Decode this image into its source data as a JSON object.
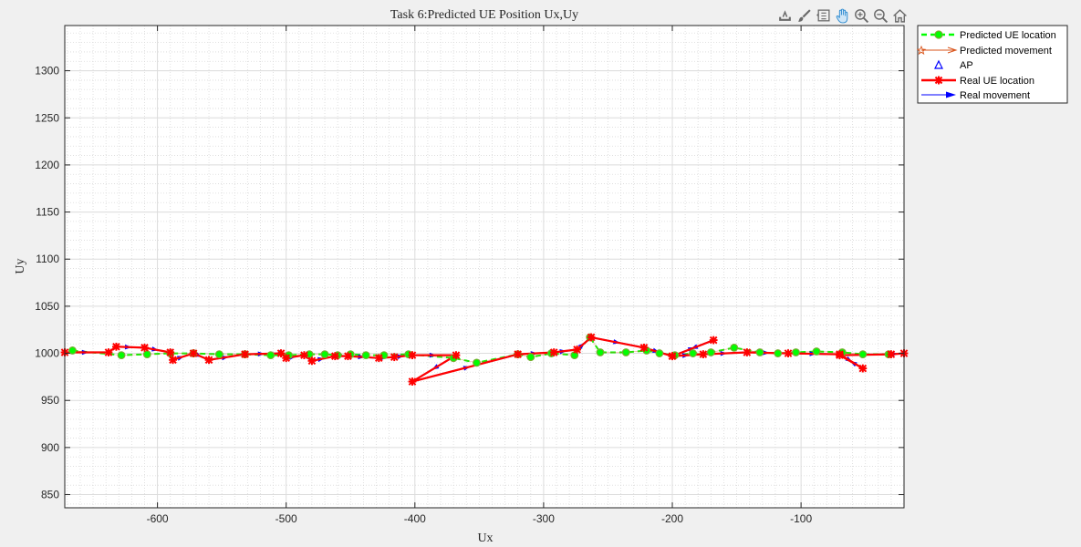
{
  "toolbar": {
    "icons": [
      "export-icon",
      "brush-icon",
      "datatip-icon",
      "pan-icon",
      "zoom-in-icon",
      "zoom-out-icon",
      "home-icon"
    ]
  },
  "chart_data": {
    "type": "line",
    "title": "Task 6:Predicted UE Position Ux,Uy",
    "xlabel": "Ux",
    "ylabel": "Uy",
    "xlim": [
      -672,
      -20
    ],
    "ylim": [
      836,
      1348
    ],
    "xticks": [
      -600,
      -500,
      -400,
      -300,
      -200,
      -100
    ],
    "yticks": [
      850,
      900,
      950,
      1000,
      1050,
      1100,
      1150,
      1200,
      1250,
      1300
    ],
    "grid": true,
    "minor_grid": true,
    "legend_position": "outside-top-right",
    "legend": [
      "Predicted UE location",
      "Predicted movement",
      "AP",
      "Real UE location",
      "Real movement"
    ],
    "colors": {
      "predicted_location": "#00ff00",
      "predicted_marker_edge": "#77ac30",
      "predicted_movement": "#d95319",
      "ap": "#0000ff",
      "real_location": "#ff0000",
      "real_movement": "#0000ff"
    },
    "series": [
      {
        "name": "Predicted UE location",
        "x": [
          -666,
          -628,
          -608,
          -590,
          -572,
          -552,
          -532,
          -512,
          -498,
          -482,
          -470,
          -460,
          -450,
          -438,
          -424,
          -405,
          -370,
          -352,
          -320,
          -310,
          -294,
          -276,
          -264,
          -256,
          -236,
          -220,
          -210,
          -198,
          -184,
          -170,
          -152,
          -132,
          -118,
          -104,
          -88,
          -68,
          -52,
          -32
        ],
        "y": [
          1003,
          998,
          999,
          1000,
          1000,
          999,
          999,
          998,
          998,
          999,
          999,
          998,
          999,
          998,
          998,
          999,
          995,
          990,
          999,
          996,
          1000,
          998,
          1017,
          1001,
          1001,
          1003,
          1000,
          998,
          1000,
          1001,
          1006,
          1001,
          1000,
          1001,
          1002,
          1001,
          999,
          999
        ]
      },
      {
        "name": "Real UE location",
        "x": [
          -672,
          -638,
          -632,
          -610,
          -590,
          -588,
          -572,
          -560,
          -532,
          -504,
          -500,
          -486,
          -480,
          -462,
          -452,
          -428,
          -416,
          -402,
          -368,
          -402,
          -320,
          -292,
          -274,
          -263,
          -222,
          -200,
          -168,
          -200,
          -176,
          -142,
          -110,
          -70,
          -52,
          -70,
          -30,
          -20
        ],
        "y": [
          1001,
          1001,
          1007,
          1006,
          1001,
          993,
          1000,
          993,
          999,
          1000,
          995,
          998,
          992,
          997,
          997,
          995,
          996,
          998,
          998,
          970,
          999,
          1001,
          1004,
          1017,
          1006,
          997,
          1014,
          997,
          999,
          1001,
          1000,
          999,
          984,
          998,
          999,
          1000
        ]
      }
    ]
  }
}
